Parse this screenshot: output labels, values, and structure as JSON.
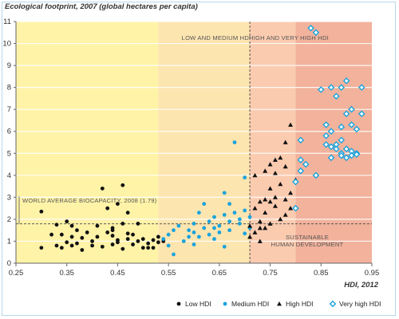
{
  "chart_data": {
    "type": "scatter",
    "title": "Ecological footprint, 2007 (global hectares per capita)",
    "xlabel": "HDI, 2012",
    "ylabel": "",
    "xlim": [
      0.25,
      0.95
    ],
    "ylim": [
      0,
      11
    ],
    "x_ticks": [
      "0.25",
      "0.35",
      "0.45",
      "0.55",
      "0.65",
      "0.75",
      "0.85",
      "0.95"
    ],
    "y_ticks": [
      "0",
      "1",
      "2",
      "3",
      "4",
      "5",
      "6",
      "7",
      "8",
      "9",
      "10",
      "11"
    ],
    "grid": "horizontal",
    "legend_position": "bottom-right",
    "colors": {
      "low_zone": "#fff3a8",
      "medium_zone": "#fde5b0",
      "high_zone": "#fbcbb0",
      "very_high_zone": "#f2b29c",
      "low": "#111111",
      "medium": "#1aa3dc",
      "high": "#111111",
      "very_high": "#1aa3dc"
    },
    "annotations": {
      "low_medium": "LOW AND MEDIUM HDI",
      "high_very_high": "HIGH AND VERY HIGH HDI",
      "biocapacity": "WORLD AVERAGE BIOCAPACITY, 2008 (1.79)",
      "sustainable_line1": "SUSTAINABLE",
      "sustainable_line2": "HUMAN DEVELOPMENT"
    },
    "reference_lines": {
      "biocapacity_y": 1.79,
      "hdi_threshold_x": 0.71
    },
    "zones": {
      "medium_start": 0.53,
      "high_start": 0.71,
      "very_high_start": 0.8
    },
    "series": [
      {
        "name": "Low HDI",
        "marker": "circle",
        "points": [
          [
            0.3,
            0.7
          ],
          [
            0.3,
            2.35
          ],
          [
            0.32,
            1.3
          ],
          [
            0.33,
            0.8
          ],
          [
            0.33,
            1.75
          ],
          [
            0.34,
            0.7
          ],
          [
            0.34,
            1.3
          ],
          [
            0.35,
            0.95
          ],
          [
            0.35,
            1.9
          ],
          [
            0.36,
            1.2
          ],
          [
            0.36,
            1.7
          ],
          [
            0.37,
            0.9
          ],
          [
            0.37,
            1.5
          ],
          [
            0.38,
            0.6
          ],
          [
            0.38,
            1.15
          ],
          [
            0.39,
            1.4
          ],
          [
            0.4,
            0.8
          ],
          [
            0.4,
            1.0
          ],
          [
            0.41,
            1.2
          ],
          [
            0.41,
            1.7
          ],
          [
            0.42,
            3.4
          ],
          [
            0.42,
            0.75
          ],
          [
            0.43,
            1.4
          ],
          [
            0.43,
            2.5
          ],
          [
            0.44,
            0.85
          ],
          [
            0.44,
            1.6
          ],
          [
            0.44,
            1.25
          ],
          [
            0.45,
            0.95
          ],
          [
            0.45,
            2.7
          ],
          [
            0.45,
            1.05
          ],
          [
            0.46,
            3.55
          ],
          [
            0.46,
            1.8
          ],
          [
            0.46,
            0.65
          ],
          [
            0.47,
            1.1
          ],
          [
            0.47,
            1.35
          ],
          [
            0.47,
            2.3
          ],
          [
            0.48,
            0.85
          ],
          [
            0.48,
            1.3
          ],
          [
            0.49,
            1.0
          ],
          [
            0.49,
            1.8
          ],
          [
            0.5,
            1.1
          ],
          [
            0.5,
            0.7
          ],
          [
            0.51,
            0.7
          ],
          [
            0.51,
            0.9
          ],
          [
            0.52,
            1.05
          ],
          [
            0.52,
            0.7
          ],
          [
            0.53,
            1.2
          ],
          [
            0.53,
            0.95
          ],
          [
            0.54,
            1.0
          ],
          [
            0.44,
            1.5
          ],
          [
            0.36,
            0.8
          ]
        ]
      },
      {
        "name": "Medium HDI",
        "marker": "circle",
        "points": [
          [
            0.54,
            1.1
          ],
          [
            0.55,
            1.3
          ],
          [
            0.55,
            0.8
          ],
          [
            0.56,
            1.5
          ],
          [
            0.56,
            0.4
          ],
          [
            0.57,
            1.7
          ],
          [
            0.58,
            1.0
          ],
          [
            0.59,
            1.2
          ],
          [
            0.59,
            1.5
          ],
          [
            0.6,
            1.8
          ],
          [
            0.6,
            0.85
          ],
          [
            0.61,
            2.3
          ],
          [
            0.61,
            1.2
          ],
          [
            0.62,
            1.6
          ],
          [
            0.62,
            2.7
          ],
          [
            0.63,
            1.3
          ],
          [
            0.63,
            1.9
          ],
          [
            0.64,
            1.1
          ],
          [
            0.64,
            2.1
          ],
          [
            0.65,
            1.7
          ],
          [
            0.65,
            1.4
          ],
          [
            0.66,
            3.2
          ],
          [
            0.66,
            2.2
          ],
          [
            0.67,
            1.5
          ],
          [
            0.67,
            2.7
          ],
          [
            0.67,
            1.9
          ],
          [
            0.68,
            5.5
          ],
          [
            0.68,
            2.3
          ],
          [
            0.69,
            1.8
          ],
          [
            0.69,
            2.0
          ],
          [
            0.7,
            2.4
          ],
          [
            0.7,
            3.9
          ],
          [
            0.71,
            1.6
          ],
          [
            0.71,
            2.1
          ],
          [
            0.66,
            0.75
          ],
          [
            0.6,
            1.4
          ],
          [
            0.64,
            1.6
          ],
          [
            0.7,
            1.35
          ]
        ]
      },
      {
        "name": "High HDI",
        "marker": "triangle",
        "points": [
          [
            0.71,
            1.2
          ],
          [
            0.71,
            1.7
          ],
          [
            0.72,
            2.5
          ],
          [
            0.72,
            1.4
          ],
          [
            0.72,
            4.0
          ],
          [
            0.73,
            1.9
          ],
          [
            0.73,
            2.8
          ],
          [
            0.73,
            1.0
          ],
          [
            0.74,
            4.2
          ],
          [
            0.74,
            1.6
          ],
          [
            0.74,
            2.3
          ],
          [
            0.75,
            2.8
          ],
          [
            0.75,
            3.4
          ],
          [
            0.75,
            1.8
          ],
          [
            0.76,
            4.1
          ],
          [
            0.76,
            2.6
          ],
          [
            0.76,
            3.0
          ],
          [
            0.77,
            4.8
          ],
          [
            0.77,
            2.0
          ],
          [
            0.77,
            3.6
          ],
          [
            0.78,
            4.4
          ],
          [
            0.78,
            5.5
          ],
          [
            0.78,
            2.9
          ],
          [
            0.79,
            6.3
          ],
          [
            0.79,
            3.2
          ],
          [
            0.79,
            2.5
          ],
          [
            0.8,
            3.8
          ],
          [
            0.74,
            2.9
          ],
          [
            0.73,
            1.6
          ],
          [
            0.76,
            4.7
          ],
          [
            0.78,
            2.2
          ],
          [
            0.75,
            4.5
          ]
        ]
      },
      {
        "name": "Very high HDI",
        "marker": "diamond",
        "points": [
          [
            0.8,
            3.7
          ],
          [
            0.8,
            2.5
          ],
          [
            0.81,
            5.6
          ],
          [
            0.81,
            4.7
          ],
          [
            0.81,
            4.2
          ],
          [
            0.82,
            4.5
          ],
          [
            0.83,
            10.7
          ],
          [
            0.84,
            10.5
          ],
          [
            0.84,
            4.0
          ],
          [
            0.85,
            7.9
          ],
          [
            0.86,
            5.4
          ],
          [
            0.86,
            5.8
          ],
          [
            0.87,
            8.0
          ],
          [
            0.87,
            6.0
          ],
          [
            0.87,
            4.8
          ],
          [
            0.88,
            5.4
          ],
          [
            0.88,
            5.2
          ],
          [
            0.88,
            7.6
          ],
          [
            0.89,
            6.2
          ],
          [
            0.89,
            5.0
          ],
          [
            0.89,
            4.9
          ],
          [
            0.89,
            8.0
          ],
          [
            0.9,
            8.3
          ],
          [
            0.9,
            4.8
          ],
          [
            0.9,
            6.8
          ],
          [
            0.91,
            6.3
          ],
          [
            0.91,
            5.1
          ],
          [
            0.91,
            7.0
          ],
          [
            0.91,
            4.9
          ],
          [
            0.92,
            5.0
          ],
          [
            0.92,
            6.1
          ],
          [
            0.93,
            8.0
          ],
          [
            0.93,
            6.8
          ],
          [
            0.87,
            5.3
          ],
          [
            0.89,
            5.6
          ],
          [
            0.9,
            5.2
          ],
          [
            0.86,
            6.3
          ],
          [
            0.92,
            4.95
          ]
        ]
      }
    ]
  }
}
